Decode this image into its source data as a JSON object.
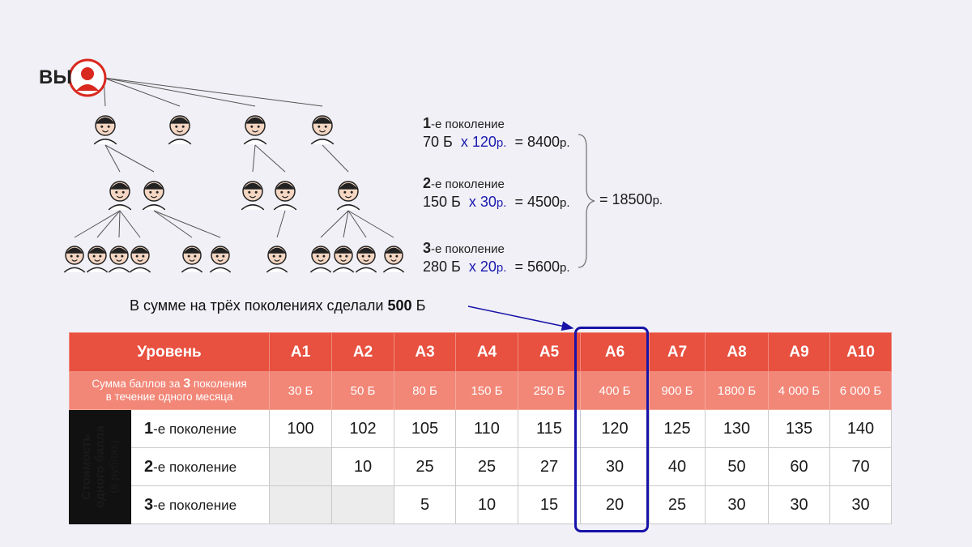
{
  "tree": {
    "you_label": "ВЫ"
  },
  "calc": {
    "rows": [
      {
        "gen_num": "1",
        "gen_text": "-е поколение",
        "points": "70 Б",
        "mult": "x 120",
        "mult_unit": "р.",
        "eq": "= 8400",
        "eq_unit": "р."
      },
      {
        "gen_num": "2",
        "gen_text": "-е поколение",
        "points": "150 Б",
        "mult": "x 30",
        "mult_unit": "р.",
        "eq": "= 4500",
        "eq_unit": "р."
      },
      {
        "gen_num": "3",
        "gen_text": "-е поколение",
        "points": "280 Б",
        "mult": "x 20",
        "mult_unit": "р.",
        "eq": "= 5600",
        "eq_unit": "р."
      }
    ],
    "total": "= 18500",
    "total_unit": "р."
  },
  "summary": {
    "text": "В сумме на трёх поколениях сделали",
    "value": "500",
    "unit": "Б"
  },
  "table": {
    "level_header": "Уровень",
    "levels": [
      "A1",
      "A2",
      "A3",
      "A4",
      "A5",
      "A6",
      "A7",
      "A8",
      "A9",
      "A10"
    ],
    "sum_label_1": "Сумма баллов за",
    "sum_label_num": "3",
    "sum_label_2": "поколения",
    "sum_label_3": "в течение одного месяца",
    "sums": [
      "30 Б",
      "50 Б",
      "80 Б",
      "150 Б",
      "250 Б",
      "400 Б",
      "900 Б",
      "1800 Б",
      "4 000 Б",
      "6 000 Б"
    ],
    "vertical_label_1": "Стоимость",
    "vertical_label_2": "одного балла",
    "vertical_label_3": "(в рублях)",
    "generations": [
      {
        "num": "1",
        "text": "-е поколение",
        "values": [
          "100",
          "102",
          "105",
          "110",
          "115",
          "120",
          "125",
          "130",
          "135",
          "140"
        ]
      },
      {
        "num": "2",
        "text": "-е поколение",
        "values": [
          "",
          "10",
          "25",
          "25",
          "27",
          "30",
          "40",
          "50",
          "60",
          "70"
        ]
      },
      {
        "num": "3",
        "text": "-е поколение",
        "values": [
          "",
          "",
          "5",
          "10",
          "15",
          "20",
          "25",
          "30",
          "30",
          "30"
        ]
      }
    ],
    "highlight_level": "A6"
  },
  "colors": {
    "header_red": "#e8503f",
    "sum_red": "#f28677",
    "highlight_blue": "#1812a8",
    "avatar_red": "#d9281e"
  }
}
